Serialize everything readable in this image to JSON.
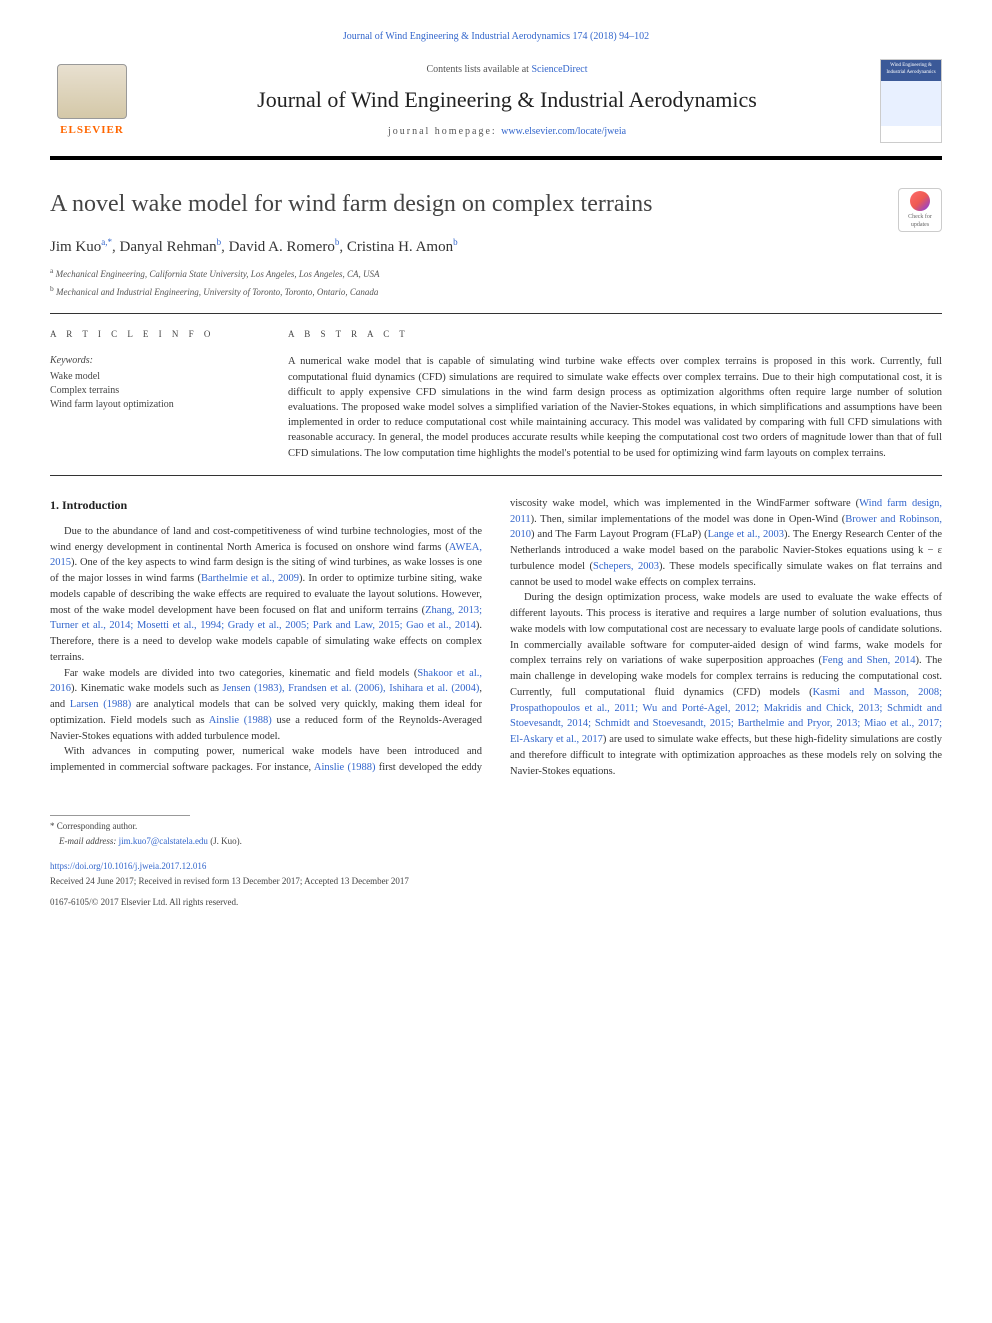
{
  "header": {
    "citation_link": "Journal of Wind Engineering & Industrial Aerodynamics 174 (2018) 94–102",
    "contents_prefix": "Contents lists available at ",
    "contents_link": "ScienceDirect",
    "journal_title": "Journal of Wind Engineering & Industrial Aerodynamics",
    "homepage_prefix": "journal homepage: ",
    "homepage_link": "www.elsevier.com/locate/jweia",
    "elsevier_text": "ELSEVIER",
    "cover_text": "Wind Engineering & Industrial Aerodynamics"
  },
  "article": {
    "title": "A novel wake model for wind farm design on complex terrains",
    "check_updates_label": "Check for updates"
  },
  "authors": {
    "a1_name": "Jim Kuo",
    "a1_sup": "a,*",
    "a2_name": "Danyal Rehman",
    "a2_sup": "b",
    "a3_name": "David A. Romero",
    "a3_sup": "b",
    "a4_name": "Cristina H. Amon",
    "a4_sup": "b"
  },
  "affiliations": {
    "aff_a_sup": "a",
    "aff_a": " Mechanical Engineering, California State University, Los Angeles, Los Angeles, CA, USA",
    "aff_b_sup": "b",
    "aff_b": " Mechanical and Industrial Engineering, University of Toronto, Toronto, Ontario, Canada"
  },
  "info": {
    "header": "A R T I C L E  I N F O",
    "keywords_label": "Keywords:",
    "kw1": "Wake model",
    "kw2": "Complex terrains",
    "kw3": "Wind farm layout optimization"
  },
  "abstract": {
    "header": "A B S T R A C T",
    "text": "A numerical wake model that is capable of simulating wind turbine wake effects over complex terrains is proposed in this work. Currently, full computational fluid dynamics (CFD) simulations are required to simulate wake effects over complex terrains. Due to their high computational cost, it is difficult to apply expensive CFD simulations in the wind farm design process as optimization algorithms often require large number of solution evaluations. The proposed wake model solves a simplified variation of the Navier-Stokes equations, in which simplifications and assumptions have been implemented in order to reduce computational cost while maintaining accuracy. This model was validated by comparing with full CFD simulations with reasonable accuracy. In general, the model produces accurate results while keeping the computational cost two orders of magnitude lower than that of full CFD simulations. The low computation time highlights the model's potential to be used for optimizing wind farm layouts on complex terrains."
  },
  "body": {
    "section1_title": "1.  Introduction",
    "p1_a": "Due to the abundance of land and cost-competitiveness of wind turbine technologies, most of the wind energy development in continental North America is focused on onshore wind farms (",
    "p1_link1": "AWEA, 2015",
    "p1_b": "). One of the key aspects to wind farm design is the siting of wind turbines, as wake losses is one of the major losses in wind farms (",
    "p1_link2": "Barthelmie et al., 2009",
    "p1_c": "). In order to optimize turbine siting, wake models capable of describing the wake effects are required to evaluate the layout solutions. However, most of the wake model development have been focused on flat and uniform terrains (",
    "p1_link3": "Zhang, 2013; Turner et al., 2014; Mosetti et al., 1994; Grady et al., 2005; Park and Law, 2015; Gao et al., 2014",
    "p1_d": "). Therefore, there is a need to develop wake models capable of simulating wake effects on complex terrains.",
    "p2_a": "Far wake models are divided into two categories, kinematic and field models (",
    "p2_link1": "Shakoor et al., 2016",
    "p2_b": "). Kinematic wake models such as ",
    "p2_link2": "Jensen (1983), Frandsen et al. (2006), Ishihara et al. (2004)",
    "p2_c": ", and ",
    "p2_link3": "Larsen (1988)",
    "p2_d": " are analytical models that can be solved very quickly, making them ideal for optimization. Field models such as ",
    "p2_link4": "Ainslie (1988)",
    "p2_e": " use a reduced form of the Reynolds-Averaged Navier-Stokes equations with added turbulence model.",
    "p3_a": "With advances in computing power, numerical wake models have been introduced and implemented in commercial software packages. For instance, ",
    "p3_link1": "Ainslie (1988)",
    "p3_b": " first developed the eddy viscosity wake model, which was implemented in the WindFarmer software (",
    "p3_link2": "Wind farm design, 2011",
    "p3_c": "). Then, similar implementations of the model was done in Open-Wind (",
    "p3_link3": "Brower and Robinson, 2010",
    "p3_d": ") and The Farm Layout Program (FLaP) (",
    "p3_link4": "Lange et al., 2003",
    "p3_e": "). The Energy Research Center of the Netherlands introduced a wake model based on the parabolic Navier-Stokes equations using k − ε turbulence model (",
    "p3_link5": "Schepers, 2003",
    "p3_f": "). These models specifically simulate wakes on flat terrains and cannot be used to model wake effects on complex terrains.",
    "p4_a": "During the design optimization process, wake models are used to evaluate the wake effects of different layouts. This process is iterative and requires a large number of solution evaluations, thus wake models with low computational cost are necessary to evaluate large pools of candidate solutions. In commercially available software for computer-aided design of wind farms, wake models for complex terrains rely on variations of wake superposition approaches (",
    "p4_link1": "Feng and Shen, 2014",
    "p4_b": "). The main challenge in developing wake models for complex terrains is reducing the computational cost. Currently, full computational fluid dynamics (CFD) models (",
    "p4_link2": "Kasmi and Masson, 2008; Prospathopoulos et al., 2011; Wu and Porté-Agel, 2012; Makridis and Chick, 2013; Schmidt and Stoevesandt, 2014; Schmidt and Stoevesandt, 2015; Barthelmie and Pryor, 2013; Miao et al., 2017; El-Askary et al., 2017",
    "p4_c": ") are used to simulate wake effects, but these high-fidelity simulations are costly and therefore difficult to integrate with optimization approaches as these models rely on solving the Navier-Stokes equations."
  },
  "footer": {
    "corresponding": "* Corresponding author.",
    "email_label": "E-mail address: ",
    "email": "jim.kuo7@calstatela.edu",
    "email_suffix": " (J. Kuo).",
    "doi": "https://doi.org/10.1016/j.jweia.2017.12.016",
    "received": "Received 24 June 2017; Received in revised form 13 December 2017; Accepted 13 December 2017",
    "copyright": "0167-6105/© 2017 Elsevier Ltd. All rights reserved."
  },
  "colors": {
    "link": "#3366cc",
    "text": "#333333",
    "elsevier_orange": "#ff6600"
  }
}
